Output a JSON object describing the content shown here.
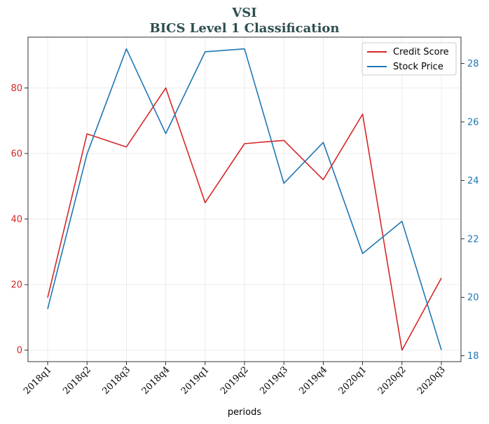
{
  "chart_data": {
    "type": "line",
    "title": "VSI",
    "subtitle": "BICS Level 1 Classification",
    "xlabel": "periods",
    "categories": [
      "2018q1",
      "2018q2",
      "2018q3",
      "2018q4",
      "2019q1",
      "2019q2",
      "2019q3",
      "2019q4",
      "2020q1",
      "2020q2",
      "2020q3"
    ],
    "series": [
      {
        "name": "Credit Score",
        "axis": "left",
        "color": "#d62728",
        "values": [
          16,
          66,
          62,
          80,
          45,
          63,
          64,
          52,
          72,
          0,
          22
        ]
      },
      {
        "name": "Stock Price",
        "axis": "right",
        "color": "#1f77b4",
        "values": [
          19.6,
          24.9,
          28.5,
          25.6,
          28.4,
          28.5,
          23.9,
          25.3,
          21.5,
          22.6,
          18.2
        ]
      }
    ],
    "y_left": {
      "ylim": [
        -3.5,
        95.5
      ],
      "ticks": [
        0,
        20,
        40,
        60,
        80
      ]
    },
    "y_right": {
      "ylim": [
        17.8,
        28.9
      ],
      "ticks": [
        18,
        20,
        22,
        24,
        26,
        28
      ]
    },
    "grid": true,
    "legend_position": "top-right"
  }
}
